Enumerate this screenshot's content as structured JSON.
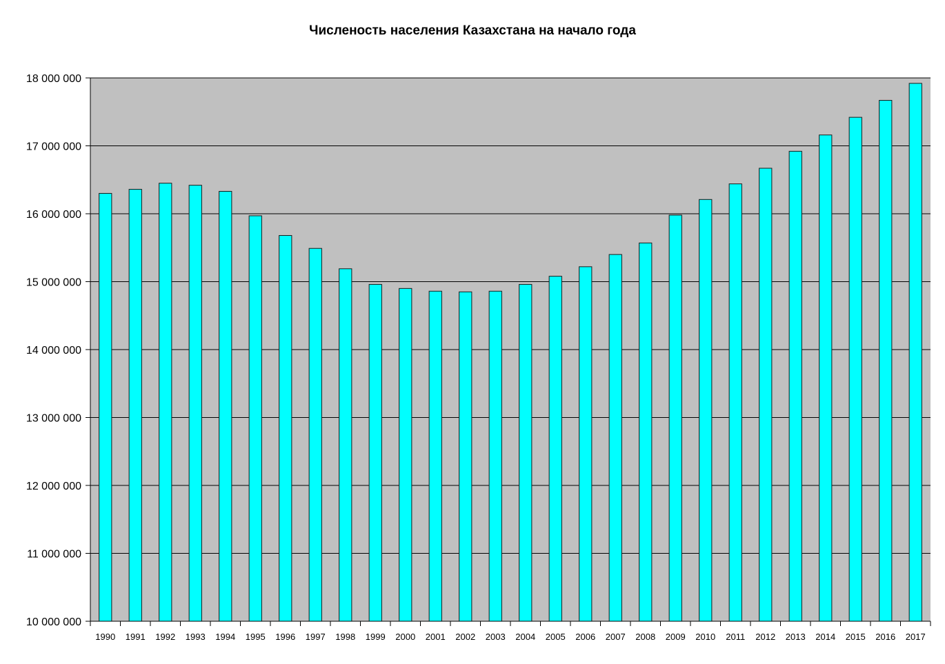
{
  "chart_data": {
    "type": "bar",
    "title": "Численость населения Казахстана на начало года",
    "xlabel": "",
    "ylabel": "",
    "ylim": [
      10000000,
      18000000
    ],
    "y_ticks": [
      10000000,
      11000000,
      12000000,
      13000000,
      14000000,
      15000000,
      16000000,
      17000000,
      18000000
    ],
    "y_tick_labels": [
      "10 000 000",
      "11 000 000",
      "12 000 000",
      "13 000 000",
      "14 000 000",
      "15 000 000",
      "16 000 000",
      "17 000 000",
      "18 000 000"
    ],
    "grid": true,
    "legend": "none",
    "categories": [
      "1990",
      "1991",
      "1992",
      "1993",
      "1994",
      "1995",
      "1996",
      "1997",
      "1998",
      "1999",
      "2000",
      "2001",
      "2002",
      "2003",
      "2004",
      "2005",
      "2006",
      "2007",
      "2008",
      "2009",
      "2010",
      "2011",
      "2012",
      "2013",
      "2014",
      "2015",
      "2016",
      "2017"
    ],
    "values": [
      16300000,
      16360000,
      16450000,
      16420000,
      16330000,
      15970000,
      15680000,
      15490000,
      15190000,
      14960000,
      14900000,
      14860000,
      14850000,
      14860000,
      14960000,
      15080000,
      15220000,
      15400000,
      15570000,
      15980000,
      16210000,
      16440000,
      16670000,
      16920000,
      17160000,
      17420000,
      17670000,
      17920000
    ],
    "colors": {
      "bar_fill": "#00FFFF",
      "bar_stroke": "#1a1a1a",
      "plot_background": "#C0C0C0",
      "gridline": "#000000",
      "axis": "#000000"
    }
  }
}
